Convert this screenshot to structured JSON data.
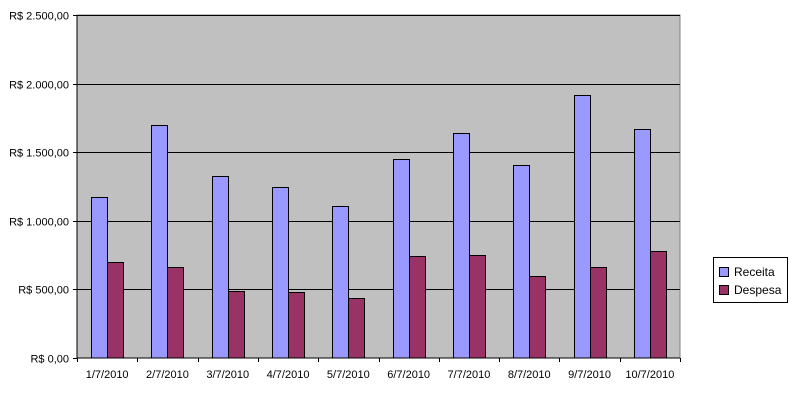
{
  "chart_data": {
    "type": "bar",
    "title": "",
    "xlabel": "",
    "ylabel": "",
    "categories": [
      "1/7/2010",
      "2/7/2010",
      "3/7/2010",
      "4/7/2010",
      "5/7/2010",
      "6/7/2010",
      "7/7/2010",
      "8/7/2010",
      "9/7/2010",
      "10/7/2010"
    ],
    "series": [
      {
        "name": "Receita",
        "color": "#9999ff",
        "values": [
          1170,
          1700,
          1330,
          1250,
          1110,
          1450,
          1640,
          1410,
          1920,
          1670
        ]
      },
      {
        "name": "Despesa",
        "color": "#993366",
        "values": [
          700,
          660,
          490,
          480,
          440,
          740,
          750,
          600,
          665,
          780
        ]
      }
    ],
    "ylim": [
      0,
      2500
    ],
    "yticks": [
      0,
      500,
      1000,
      1500,
      2000,
      2500
    ],
    "ytick_labels": [
      "R$ 0,00",
      "R$ 500,00",
      "R$ 1.000,00",
      "R$ 1.500,00",
      "R$ 2.000,00",
      "R$ 2.500,00"
    ],
    "grid": true,
    "legend_position": "right",
    "plot_background": "#c0c0c0"
  }
}
